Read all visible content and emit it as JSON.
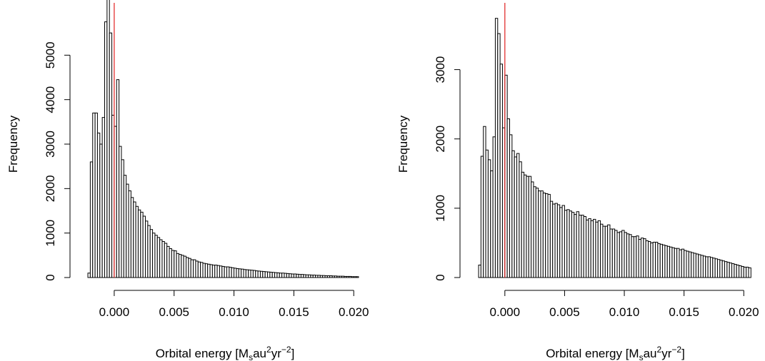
{
  "colors": {
    "bar_fill": "#ffffff",
    "bar_stroke": "#000000",
    "reference_line": "#e02020",
    "background": "#ffffff"
  },
  "chart_data": [
    {
      "type": "bar",
      "title": "",
      "xlabel": "Orbital energy [M_s au^2 yr^-2]",
      "xlabel_parts": {
        "main": "Orbital energy [M",
        "sub": "s",
        "mid1": "au",
        "sup1": "2",
        "mid2": "yr",
        "sup2": "−2",
        "end": "]"
      },
      "ylabel": "Frequency",
      "x_ticks": [
        "0.000",
        "0.005",
        "0.010",
        "0.015",
        "0.020"
      ],
      "x_tick_values": [
        0,
        0.005,
        0.01,
        0.015,
        0.02
      ],
      "y_ticks": [
        "0",
        "1000",
        "2000",
        "3000",
        "4000",
        "5000"
      ],
      "y_tick_values": [
        0,
        1000,
        2000,
        3000,
        4000,
        5000
      ],
      "xlim": [
        -0.0025,
        0.021
      ],
      "ylim": [
        0,
        6000
      ],
      "grid": false,
      "bin_start": -0.0022,
      "bin_width": 0.0002,
      "reference_line_x": 0,
      "values": [
        100,
        2600,
        3700,
        3700,
        3250,
        3000,
        3600,
        5750,
        6250,
        5500,
        3650,
        3400,
        4450,
        2950,
        2650,
        2300,
        2100,
        1950,
        1800,
        1700,
        1600,
        1520,
        1470,
        1380,
        1270,
        1170,
        1080,
        1000,
        950,
        900,
        850,
        810,
        770,
        700,
        650,
        610,
        600,
        540,
        520,
        500,
        480,
        450,
        430,
        400,
        400,
        370,
        350,
        340,
        320,
        310,
        300,
        290,
        280,
        280,
        270,
        260,
        250,
        240,
        240,
        230,
        220,
        210,
        200,
        195,
        190,
        180,
        175,
        170,
        165,
        160,
        150,
        145,
        140,
        135,
        130,
        125,
        120,
        115,
        110,
        105,
        100,
        100,
        95,
        90,
        85,
        80,
        80,
        75,
        70,
        70,
        65,
        60,
        60,
        55,
        55,
        50,
        50,
        45,
        45,
        40,
        40,
        40,
        35,
        35,
        30,
        30,
        30,
        25,
        25,
        25,
        20,
        20,
        20
      ]
    },
    {
      "type": "bar",
      "title": "",
      "xlabel": "Orbital energy [M_s au^2 yr^-2]",
      "xlabel_parts": {
        "main": "Orbital energy [M",
        "sub": "s",
        "mid1": "au",
        "sup1": "2",
        "mid2": "yr",
        "sup2": "−2",
        "end": "]"
      },
      "ylabel": "Frequency",
      "x_ticks": [
        "0.000",
        "0.005",
        "0.010",
        "0.015",
        "0.020"
      ],
      "x_tick_values": [
        0,
        0.005,
        0.01,
        0.015,
        0.02
      ],
      "y_ticks": [
        "0",
        "1000",
        "2000",
        "3000"
      ],
      "y_tick_values": [
        0,
        1000,
        2000,
        3000
      ],
      "xlim": [
        -0.0025,
        0.021
      ],
      "ylim": [
        0,
        3850
      ],
      "grid": false,
      "bin_start": -0.0022,
      "bin_width": 0.0002,
      "reference_line_x": 0,
      "values": [
        180,
        1750,
        2180,
        1840,
        1700,
        1540,
        2030,
        3740,
        3520,
        3080,
        2160,
        2920,
        2290,
        2060,
        1830,
        1740,
        1790,
        1670,
        1520,
        1480,
        1460,
        1460,
        1380,
        1310,
        1290,
        1250,
        1250,
        1220,
        1210,
        1200,
        1100,
        1060,
        1070,
        1050,
        1010,
        1040,
        970,
        980,
        960,
        940,
        910,
        950,
        900,
        900,
        880,
        830,
        850,
        820,
        840,
        800,
        820,
        770,
        740,
        740,
        760,
        700,
        700,
        680,
        650,
        660,
        680,
        650,
        630,
        620,
        590,
        590,
        600,
        550,
        570,
        560,
        530,
        520,
        500,
        510,
        510,
        490,
        480,
        470,
        460,
        450,
        440,
        430,
        420,
        420,
        400,
        410,
        390,
        380,
        370,
        360,
        350,
        340,
        330,
        320,
        310,
        300,
        300,
        290,
        280,
        270,
        260,
        250,
        240,
        230,
        220,
        210,
        200,
        190,
        180,
        170,
        160,
        150,
        150,
        140
      ]
    }
  ]
}
